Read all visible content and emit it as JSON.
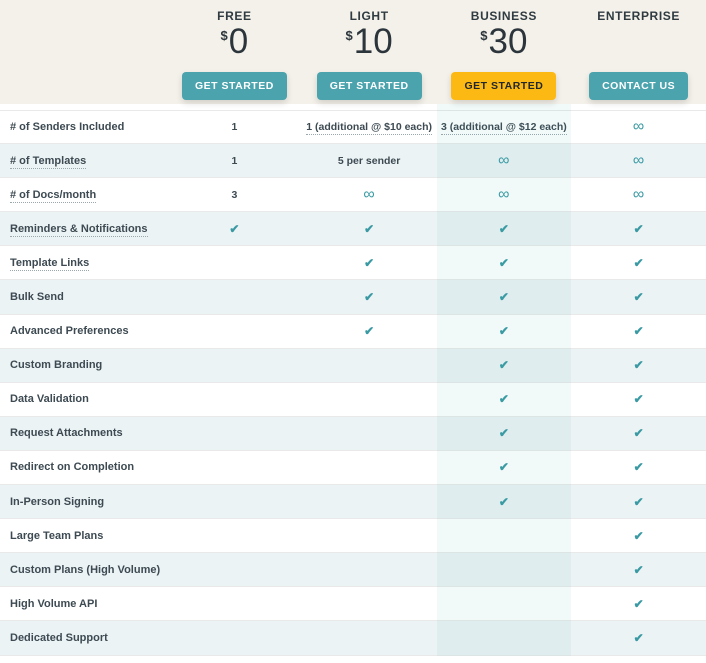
{
  "theme": {
    "teal": "#4AA3AD",
    "yellow": "#FDB913",
    "header_background": "#F4F1EA",
    "row_alternate": "#EBF3F5",
    "check_color": "#3A9AA3",
    "text_dark": "#3D4A52"
  },
  "glyphs": {
    "check": "✔",
    "infinity": "∞"
  },
  "plans": [
    {
      "id": "free",
      "name": "FREE",
      "currency": "$",
      "price": "0",
      "button": {
        "label": "GET STARTED",
        "style": "teal"
      }
    },
    {
      "id": "light",
      "name": "LIGHT",
      "currency": "$",
      "price": "10",
      "button": {
        "label": "GET STARTED",
        "style": "teal"
      }
    },
    {
      "id": "business",
      "name": "BUSINESS",
      "currency": "$",
      "price": "30",
      "button": {
        "label": "GET STARTED",
        "style": "yellow"
      },
      "highlighted": true
    },
    {
      "id": "enterprise",
      "name": "ENTERPRISE",
      "currency": "",
      "price": "",
      "button": {
        "label": "CONTACT US",
        "style": "teal"
      }
    }
  ],
  "features": [
    {
      "label": "# of Senders Included",
      "label_underline": false,
      "cells": [
        {
          "t": "text",
          "v": "1"
        },
        {
          "t": "text",
          "v": "1 (additional @ $10 each)",
          "underline": true
        },
        {
          "t": "text",
          "v": "3 (additional @ $12 each)",
          "underline": true
        },
        {
          "t": "infinity"
        }
      ]
    },
    {
      "label": "# of Templates",
      "label_underline": true,
      "cells": [
        {
          "t": "text",
          "v": "1"
        },
        {
          "t": "text",
          "v": "5 per sender"
        },
        {
          "t": "infinity"
        },
        {
          "t": "infinity"
        }
      ]
    },
    {
      "label": "# of Docs/month",
      "label_underline": true,
      "cells": [
        {
          "t": "text",
          "v": "3"
        },
        {
          "t": "infinity"
        },
        {
          "t": "infinity"
        },
        {
          "t": "infinity"
        }
      ]
    },
    {
      "label": "Reminders & Notifications",
      "label_underline": true,
      "cells": [
        {
          "t": "check"
        },
        {
          "t": "check"
        },
        {
          "t": "check"
        },
        {
          "t": "check"
        }
      ]
    },
    {
      "label": "Template Links",
      "label_underline": true,
      "cells": [
        {
          "t": "none"
        },
        {
          "t": "check"
        },
        {
          "t": "check"
        },
        {
          "t": "check"
        }
      ]
    },
    {
      "label": "Bulk Send",
      "label_underline": false,
      "cells": [
        {
          "t": "none"
        },
        {
          "t": "check"
        },
        {
          "t": "check"
        },
        {
          "t": "check"
        }
      ]
    },
    {
      "label": "Advanced Preferences",
      "label_underline": false,
      "cells": [
        {
          "t": "none"
        },
        {
          "t": "check"
        },
        {
          "t": "check"
        },
        {
          "t": "check"
        }
      ]
    },
    {
      "label": "Custom Branding",
      "label_underline": false,
      "cells": [
        {
          "t": "none"
        },
        {
          "t": "none"
        },
        {
          "t": "check"
        },
        {
          "t": "check"
        }
      ]
    },
    {
      "label": "Data Validation",
      "label_underline": false,
      "cells": [
        {
          "t": "none"
        },
        {
          "t": "none"
        },
        {
          "t": "check"
        },
        {
          "t": "check"
        }
      ]
    },
    {
      "label": "Request Attachments",
      "label_underline": false,
      "cells": [
        {
          "t": "none"
        },
        {
          "t": "none"
        },
        {
          "t": "check"
        },
        {
          "t": "check"
        }
      ]
    },
    {
      "label": "Redirect on Completion",
      "label_underline": false,
      "cells": [
        {
          "t": "none"
        },
        {
          "t": "none"
        },
        {
          "t": "check"
        },
        {
          "t": "check"
        }
      ]
    },
    {
      "label": "In-Person Signing",
      "label_underline": false,
      "cells": [
        {
          "t": "none"
        },
        {
          "t": "none"
        },
        {
          "t": "check"
        },
        {
          "t": "check"
        }
      ]
    },
    {
      "label": "Large Team Plans",
      "label_underline": false,
      "cells": [
        {
          "t": "none"
        },
        {
          "t": "none"
        },
        {
          "t": "none"
        },
        {
          "t": "check"
        }
      ]
    },
    {
      "label": "Custom Plans (High Volume)",
      "label_underline": false,
      "cells": [
        {
          "t": "none"
        },
        {
          "t": "none"
        },
        {
          "t": "none"
        },
        {
          "t": "check"
        }
      ]
    },
    {
      "label": "High Volume API",
      "label_underline": false,
      "cells": [
        {
          "t": "none"
        },
        {
          "t": "none"
        },
        {
          "t": "none"
        },
        {
          "t": "check"
        }
      ]
    },
    {
      "label": "Dedicated Support",
      "label_underline": false,
      "cells": [
        {
          "t": "none"
        },
        {
          "t": "none"
        },
        {
          "t": "none"
        },
        {
          "t": "check"
        }
      ]
    }
  ]
}
